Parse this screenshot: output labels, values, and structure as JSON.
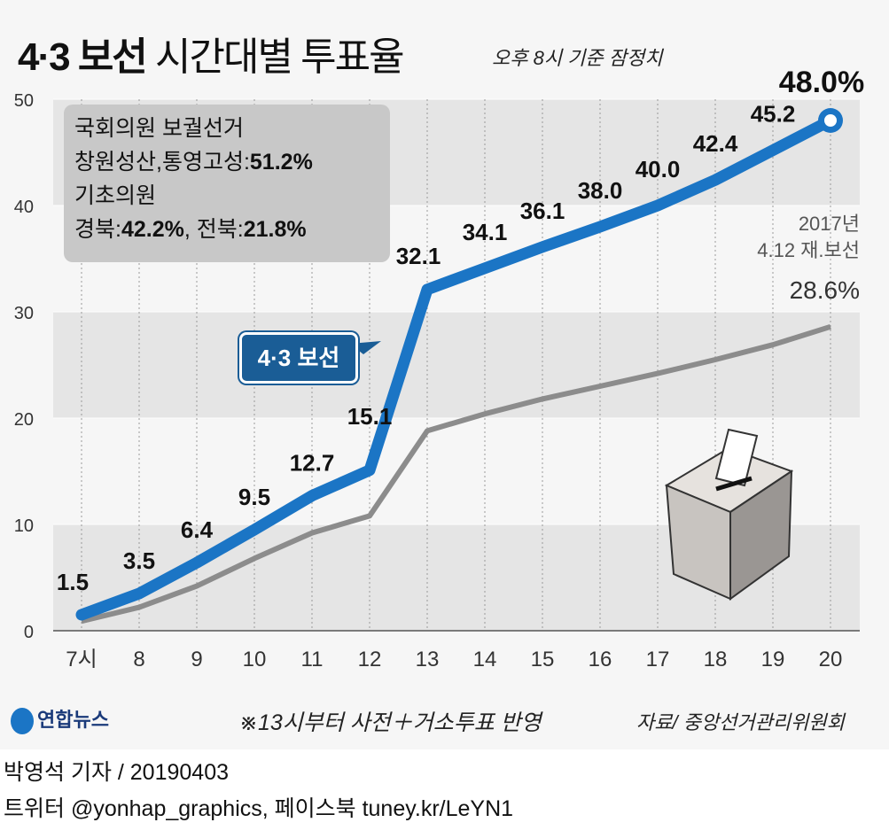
{
  "title_bold": "4·3 보선",
  "title_rest": "시간대별 투표율",
  "subtitle": "오후 8시 기준 잠정치",
  "legend": {
    "line1": "국회의원 보궐선거",
    "line2a": "창원성산,통영고성:",
    "line2b": "51.2%",
    "line3": "기초의원",
    "line4a": "경북:",
    "line4b": "42.2%",
    "line4c": ", 전북:",
    "line4d": "21.8%"
  },
  "callout": "4·3 보선",
  "prev_label1": "2017년",
  "prev_label2": "4.12 재.보선",
  "prev_final": "28.6%",
  "final_label": "48.0%",
  "note": "※13시부터 사전＋거소투표 반영",
  "source": "자료/ 중앙선거관리위원회",
  "logo": "연합뉴스",
  "byline": "박영석 기자 / 20190403",
  "sns": "트위터 @yonhap_graphics, 페이스북 tuney.kr/LeYN1",
  "colors": {
    "main": "#1b75c5",
    "prev": "#8c8c8c"
  },
  "chart_data": {
    "type": "line",
    "title": "4·3 보선 시간대별 투표율",
    "categories": [
      "7시",
      "8",
      "9",
      "10",
      "11",
      "12",
      "13",
      "14",
      "15",
      "16",
      "17",
      "18",
      "19",
      "20"
    ],
    "ylim": [
      0,
      50
    ],
    "yticks": [
      0,
      10,
      20,
      30,
      40,
      50
    ],
    "series": [
      {
        "name": "4·3 보선",
        "values": [
          1.5,
          3.5,
          6.4,
          9.5,
          12.7,
          15.1,
          32.1,
          34.1,
          36.1,
          38.0,
          40.0,
          42.4,
          45.2,
          48.0
        ],
        "labels": [
          "1.5",
          "3.5",
          "6.4",
          "9.5",
          "12.7",
          "15.1",
          "32.1",
          "34.1",
          "36.1",
          "38.0",
          "40.0",
          "42.4",
          "45.2",
          ""
        ]
      },
      {
        "name": "2017년 4.12 재.보선",
        "values": [
          0.9,
          2.2,
          4.2,
          6.8,
          9.2,
          10.8,
          18.8,
          20.4,
          21.8,
          23.0,
          24.2,
          25.5,
          26.9,
          28.6
        ]
      }
    ]
  }
}
